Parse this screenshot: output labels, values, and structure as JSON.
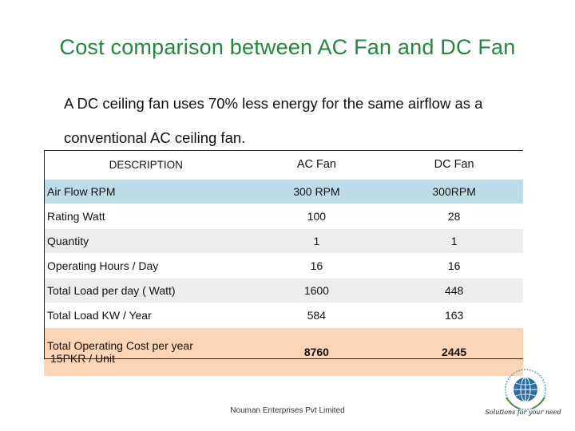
{
  "slide": {
    "title": "Cost comparison between AC Fan and DC Fan",
    "intro_line1": "A DC ceiling fan uses 70% less energy for the same airflow as a",
    "intro_line2": "conventional AC ceiling fan."
  },
  "table": {
    "headers": [
      "DESCRIPTION",
      "AC Fan",
      "DC Fan"
    ],
    "rows": [
      {
        "label": "Air Flow RPM",
        "ac": "300 RPM",
        "dc": "300RPM"
      },
      {
        "label": "Rating Watt",
        "ac": "100",
        "dc": "28"
      },
      {
        "label": "Quantity",
        "ac": "1",
        "dc": "1"
      },
      {
        "label": "Operating Hours / Day",
        "ac": "16",
        "dc": "16"
      },
      {
        "label": "Total Load per day ( Watt)",
        "ac": "1600",
        "dc": "448"
      },
      {
        "label": "Total Load KW / Year",
        "ac": "584",
        "dc": "163"
      },
      {
        "label_line1": "Total Operating Cost per year",
        "label_line2": "15PKR /  Unit",
        "ac": "8760",
        "dc": "2445"
      }
    ]
  },
  "footer": "Nouman Enterprises Pvt Limited",
  "logo": {
    "icon": "un-global-compact-globe-icon",
    "tagline": "Solutions for your need"
  },
  "colors": {
    "title": "#1f8a3b",
    "row_blue": "#bcdce8",
    "row_grey": "#ededed",
    "row_peach": "#fbd5b5"
  }
}
